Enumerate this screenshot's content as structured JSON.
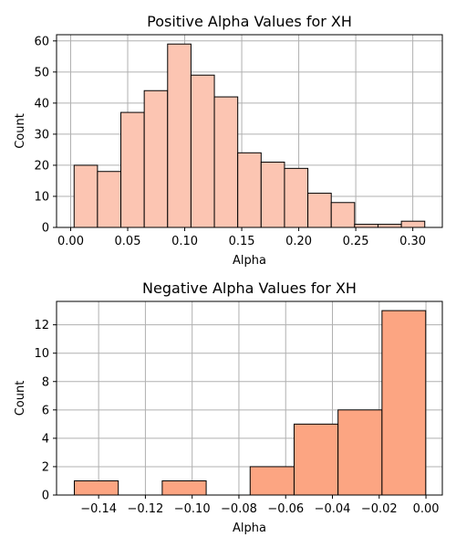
{
  "chart_data": [
    {
      "type": "bar",
      "title": "Positive Alpha Values for XH",
      "xlabel": "Alpha",
      "ylabel": "Count",
      "bin_edges": [
        0.003,
        0.0235,
        0.044,
        0.0645,
        0.085,
        0.1055,
        0.126,
        0.1465,
        0.167,
        0.1875,
        0.208,
        0.2285,
        0.249,
        0.2695,
        0.29,
        0.3105
      ],
      "values": [
        20,
        18,
        37,
        44,
        59,
        49,
        42,
        24,
        21,
        19,
        11,
        8,
        1,
        1,
        2
      ],
      "xlim": [
        -0.0124,
        0.3259
      ],
      "ylim": [
        0,
        62
      ],
      "xticks": [
        0.0,
        0.05,
        0.1,
        0.15,
        0.2,
        0.25,
        0.3
      ],
      "xtick_labels": [
        "0.00",
        "0.05",
        "0.10",
        "0.15",
        "0.20",
        "0.25",
        "0.30"
      ],
      "yticks": [
        0,
        10,
        20,
        30,
        40,
        50,
        60
      ],
      "ytick_labels": [
        "0",
        "10",
        "20",
        "30",
        "40",
        "50",
        "60"
      ],
      "bar_color": "#fcc5b2",
      "edge_color": "#000000",
      "grid": true
    },
    {
      "type": "bar",
      "title": "Negative Alpha Values for XH",
      "xlabel": "Alpha",
      "ylabel": "Count",
      "bin_edges": [
        -0.1504,
        -0.1316,
        -0.1128,
        -0.094,
        -0.0752,
        -0.0564,
        -0.0376,
        -0.0188,
        -0.0001
      ],
      "values": [
        1,
        0,
        1,
        0,
        2,
        5,
        6,
        13
      ],
      "xlim": [
        -0.158,
        0.007
      ],
      "ylim": [
        0,
        13.65
      ],
      "xticks": [
        -0.14,
        -0.12,
        -0.1,
        -0.08,
        -0.06,
        -0.04,
        -0.02,
        0.0
      ],
      "xtick_labels": [
        "−0.14",
        "−0.12",
        "−0.10",
        "−0.08",
        "−0.06",
        "−0.04",
        "−0.02",
        "0.00"
      ],
      "yticks": [
        0,
        2,
        4,
        6,
        8,
        10,
        12
      ],
      "ytick_labels": [
        "0",
        "2",
        "4",
        "6",
        "8",
        "10",
        "12"
      ],
      "bar_color": "#fca582",
      "edge_color": "#000000",
      "grid": true
    }
  ]
}
